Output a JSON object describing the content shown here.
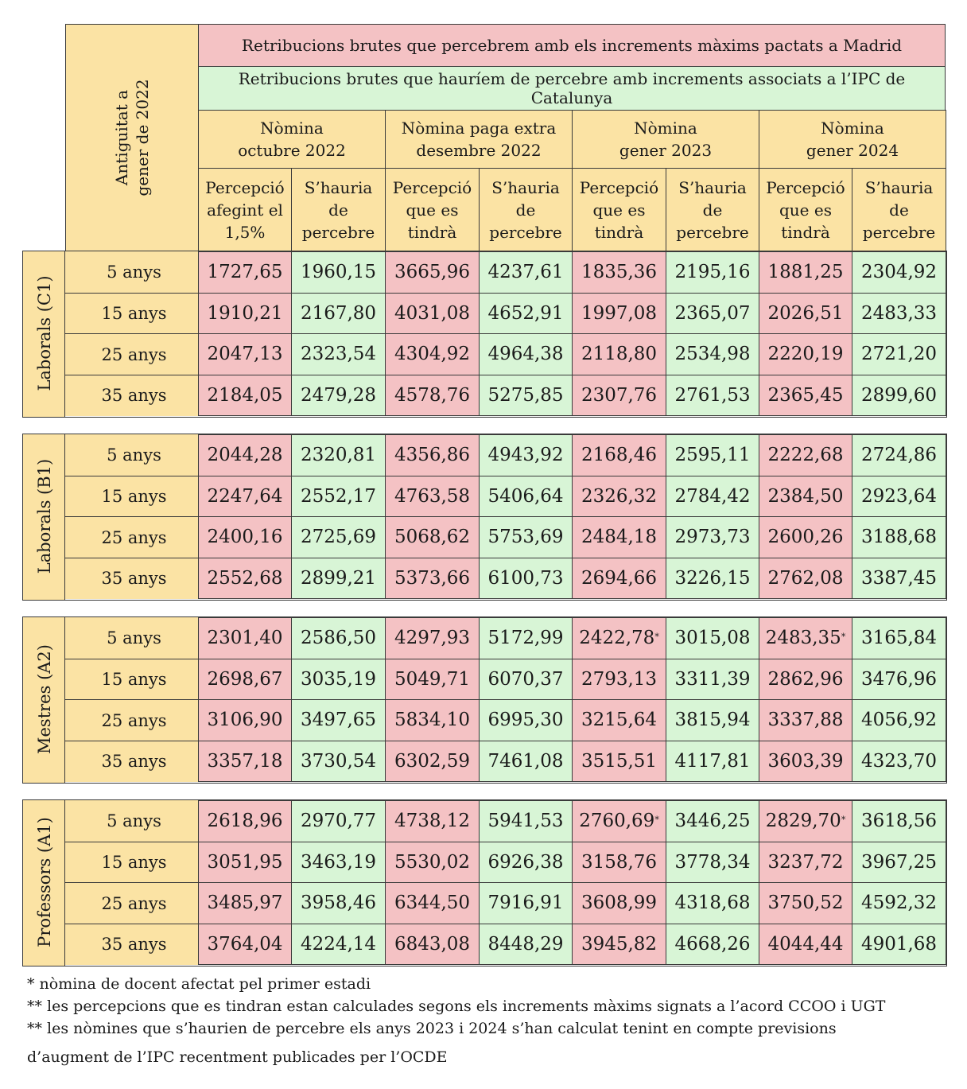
{
  "header": {
    "antiguitat": [
      "Antiguitat a",
      "gener de 2022"
    ],
    "title_madrid": "Retribucions brutes que percebrem amb els increments màxims pactats a Madrid",
    "title_ipc": "Retribucions brutes que hauríem de percebre amb increments associats a l’IPC de Catalunya",
    "periods": [
      [
        "Nòmina",
        "octubre 2022"
      ],
      [
        "Nòmina paga extra",
        "desembre 2022"
      ],
      [
        "Nòmina",
        "gener 2023"
      ],
      [
        "Nòmina",
        "gener 2024"
      ]
    ],
    "subcols": [
      [
        "Percepció",
        "afegint el",
        "1,5%"
      ],
      [
        "S’hauria",
        "de",
        "percebre"
      ],
      [
        "Percepció",
        "que  es",
        "tindrà"
      ],
      [
        "S’hauria",
        "de",
        "percebre"
      ],
      [
        "Percepció",
        "que  es",
        "tindrà"
      ],
      [
        "S’hauria",
        "de",
        "percebre"
      ],
      [
        "Percepció",
        "que  es",
        "tindrà"
      ],
      [
        "S’hauria",
        "de",
        "percebre"
      ]
    ]
  },
  "groups": [
    {
      "label": "Laborals (C1)",
      "rows": [
        {
          "years": "5 anys",
          "values": [
            "1727,65",
            "1960,15",
            "3665,96",
            "4237,61",
            "1835,36",
            "2195,16",
            "1881,25",
            "2304,92"
          ]
        },
        {
          "years": "15 anys",
          "values": [
            "1910,21",
            "2167,80",
            "4031,08",
            "4652,91",
            "1997,08",
            "2365,07",
            "2026,51",
            "2483,33"
          ]
        },
        {
          "years": "25 anys",
          "values": [
            "2047,13",
            "2323,54",
            "4304,92",
            "4964,38",
            "2118,80",
            "2534,98",
            "2220,19",
            "2721,20"
          ]
        },
        {
          "years": "35 anys",
          "values": [
            "2184,05",
            "2479,28",
            "4578,76",
            "5275,85",
            "2307,76",
            "2761,53",
            "2365,45",
            "2899,60"
          ]
        }
      ]
    },
    {
      "label": "Laborals (B1)",
      "rows": [
        {
          "years": "5 anys",
          "values": [
            "2044,28",
            "2320,81",
            "4356,86",
            "4943,92",
            "2168,46",
            "2595,11",
            "2222,68",
            "2724,86"
          ]
        },
        {
          "years": "15 anys",
          "values": [
            "2247,64",
            "2552,17",
            "4763,58",
            "5406,64",
            "2326,32",
            "2784,42",
            "2384,50",
            "2923,64"
          ]
        },
        {
          "years": "25 anys",
          "values": [
            "2400,16",
            "2725,69",
            "5068,62",
            "5753,69",
            "2484,18",
            "2973,73",
            "2600,26",
            "3188,68"
          ]
        },
        {
          "years": "35 anys",
          "values": [
            "2552,68",
            "2899,21",
            "5373,66",
            "6100,73",
            "2694,66",
            "3226,15",
            "2762,08",
            "3387,45"
          ]
        }
      ]
    },
    {
      "label": "Mestres (A2)",
      "rows": [
        {
          "years": "5 anys",
          "values": [
            "2301,40",
            "2586,50",
            "4297,93",
            "5172,99",
            "2422,78",
            "3015,08",
            "2483,35",
            "3165,84"
          ],
          "stars": [
            4,
            6
          ]
        },
        {
          "years": "15 anys",
          "values": [
            "2698,67",
            "3035,19",
            "5049,71",
            "6070,37",
            "2793,13",
            "3311,39",
            "2862,96",
            "3476,96"
          ]
        },
        {
          "years": "25 anys",
          "values": [
            "3106,90",
            "3497,65",
            "5834,10",
            "6995,30",
            "3215,64",
            "3815,94",
            "3337,88",
            "4056,92"
          ]
        },
        {
          "years": "35 anys",
          "values": [
            "3357,18",
            "3730,54",
            "6302,59",
            "7461,08",
            "3515,51",
            "4117,81",
            "3603,39",
            "4323,70"
          ]
        }
      ]
    },
    {
      "label": "Professors (A1)",
      "rows": [
        {
          "years": "5 anys",
          "values": [
            "2618,96",
            "2970,77",
            "4738,12",
            "5941,53",
            "2760,69",
            "3446,25",
            "2829,70",
            "3618,56"
          ],
          "stars": [
            4,
            6
          ]
        },
        {
          "years": "15 anys",
          "values": [
            "3051,95",
            "3463,19",
            "5530,02",
            "6926,38",
            "3158,76",
            "3778,34",
            "3237,72",
            "3967,25"
          ]
        },
        {
          "years": "25 anys",
          "values": [
            "3485,97",
            "3958,46",
            "6344,50",
            "7916,91",
            "3608,99",
            "4318,68",
            "3750,52",
            "4592,32"
          ]
        },
        {
          "years": "35 anys",
          "values": [
            "3764,04",
            "4224,14",
            "6843,08",
            "8448,29",
            "3945,82",
            "4668,26",
            "4044,44",
            "4901,68"
          ]
        }
      ]
    }
  ],
  "star_mark": "*",
  "colors": {
    "yellow": "#fbe3a4",
    "red": "#f4c2c4",
    "green": "#d8f5d6"
  },
  "footnotes": [
    "* nòmina de docent afectat pel primer estadi",
    "** les percepcions que es tindran estan calculades segons els increments màxims signats a l’acord CCOO i UGT",
    "** les nòmines que s’haurien de percebre els anys 2023 i 2024 s’han calculat tenint en compte previsions",
    "d’augment de l’IPC recentment publicades per l’OCDE"
  ]
}
